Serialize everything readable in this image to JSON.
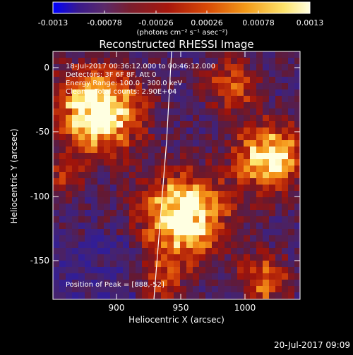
{
  "colorbar": {
    "tick_labels": [
      "-0.0013",
      "-0.00078",
      "-0.00026",
      "0.00026",
      "0.00078",
      "0.0013"
    ],
    "unit_label": "(photons cm⁻² s⁻¹ asec⁻²)",
    "range": [
      -0.0013,
      0.0013
    ]
  },
  "plot": {
    "title": "Reconstructed RHESSI Image",
    "xlabel": "Heliocentric X (arcsec)",
    "ylabel": "Heliocentric Y (arcsec)",
    "x_ticks": [
      "900",
      "950",
      "1000"
    ],
    "y_ticks": [
      "0",
      "-50",
      "-100",
      "-150"
    ],
    "xlim": [
      852,
      1040
    ],
    "ylim": [
      -180,
      12
    ],
    "info_lines": [
      "18-Jul-2017 00:36:12.000 to 00:46:12.000",
      "Detectors: 3F 6F 8F, Att 0",
      "Energy Range: 100.0 - 300.0 keV",
      "Clean    Total counts: 2.90E+04"
    ],
    "peak_label": "Position of Peak = [888,-52]"
  },
  "footer": {
    "timestamp": "20-Jul-2017 09:09"
  },
  "colors": {
    "background": "#000000",
    "text": "#ffffff",
    "colormap": [
      "#0000ff",
      "#3a1a8c",
      "#5b2a6a",
      "#7a1e2e",
      "#a8180c",
      "#d84a06",
      "#f39a18",
      "#fde46c",
      "#ffffe0"
    ]
  }
}
